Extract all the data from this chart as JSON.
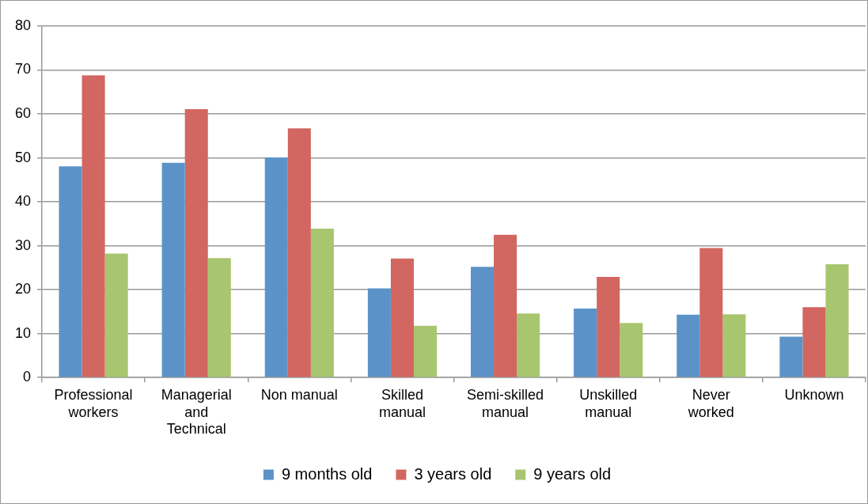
{
  "chart_data": {
    "type": "bar",
    "categories": [
      "Professional workers",
      "Managerial and Technical",
      "Non manual",
      "Skilled manual",
      "Semi-skilled manual",
      "Unskilled manual",
      "Never worked",
      "Unknown"
    ],
    "series": [
      {
        "name": "9 months old",
        "color": "#5b93c8",
        "values": [
          48.1,
          48.9,
          50.1,
          20.3,
          25.2,
          15.7,
          14.3,
          9.3
        ]
      },
      {
        "name": "3 years old",
        "color": "#d26661",
        "values": [
          68.8,
          61.1,
          56.7,
          27.1,
          32.5,
          22.9,
          29.5,
          16.0
        ]
      },
      {
        "name": "9 years old",
        "color": "#a8c56f",
        "values": [
          28.2,
          27.2,
          33.9,
          11.8,
          14.6,
          12.4,
          14.4,
          25.8
        ]
      }
    ],
    "ylim": [
      0,
      80
    ],
    "yticks": [
      0,
      10,
      20,
      30,
      40,
      50,
      60,
      70,
      80
    ],
    "grid": "y",
    "legend": "bottom"
  }
}
